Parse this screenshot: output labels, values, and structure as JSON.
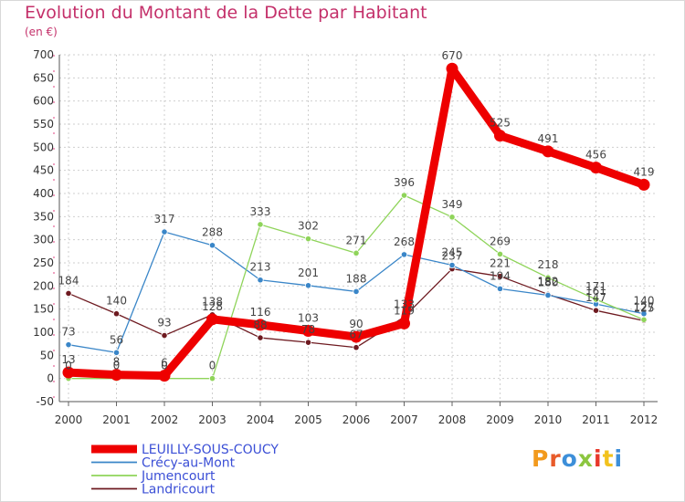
{
  "header": {
    "title": "Evolution du Montant de la Dette par Habitant",
    "unit": "(en €)"
  },
  "logo": {
    "text": "Proxiti",
    "colors": [
      "#f29a1d",
      "#e85b2a",
      "#3d8fd9",
      "#8cc63f",
      "#e8372a",
      "#f2c21d",
      "#3d8fd9"
    ]
  },
  "chart_data": {
    "type": "line",
    "title": "Evolution du Montant de la Dette par Habitant",
    "ylabel": "(en €)",
    "ylim": [
      -50,
      700
    ],
    "yticks": [
      -50,
      0,
      50,
      100,
      150,
      200,
      250,
      300,
      350,
      400,
      450,
      500,
      550,
      600,
      650,
      700
    ],
    "x": [
      "2000",
      "2001",
      "2002",
      "2003",
      "2004",
      "2005",
      "2006",
      "2007",
      "2008",
      "2009",
      "2010",
      "2011",
      "2012"
    ],
    "grid": true,
    "legend_position": "bottom-left",
    "series": [
      {
        "name": "Landricourt",
        "color": "#6e1a20",
        "width": 1.3,
        "values": [
          184,
          140,
          93,
          138,
          88,
          78,
          67,
          133,
          237,
          221,
          182,
          147,
          125
        ],
        "labels": [
          "184",
          "140",
          "93",
          "138",
          "88",
          "78",
          "67",
          "133",
          "237",
          "221",
          "182",
          "147",
          "125"
        ]
      },
      {
        "name": "Crécy-au-Mont",
        "color": "#3a86c8",
        "width": 1.3,
        "values": [
          73,
          56,
          317,
          288,
          213,
          201,
          188,
          268,
          245,
          194,
          180,
          161,
          140
        ],
        "labels": [
          "73",
          "56",
          "317",
          "288",
          "213",
          "201",
          "188",
          "268",
          "245",
          "194",
          "180",
          "161",
          "140"
        ]
      },
      {
        "name": "Jumencourt",
        "color": "#8fd45a",
        "width": 1.3,
        "values": [
          0,
          0,
          0,
          0,
          333,
          302,
          271,
          396,
          349,
          269,
          218,
          171,
          127
        ],
        "labels": [
          "0",
          "0",
          "0",
          "0",
          "333",
          "302",
          "271",
          "396",
          "349",
          "269",
          "218",
          "171",
          "127"
        ]
      },
      {
        "name": "LEUILLY-SOUS-COUCY",
        "color": "#ee0000",
        "width": 9,
        "values": [
          13,
          8,
          6,
          128,
          116,
          103,
          90,
          119,
          670,
          525,
          491,
          456,
          419
        ],
        "labels": [
          "13",
          "8",
          "6",
          "128",
          "116",
          "103",
          "90",
          "119",
          "670",
          "525",
          "491",
          "456",
          "419"
        ]
      }
    ],
    "legend": [
      "LEUILLY-SOUS-COUCY",
      "Crécy-au-Mont",
      "Jumencourt",
      "Landricourt"
    ]
  }
}
